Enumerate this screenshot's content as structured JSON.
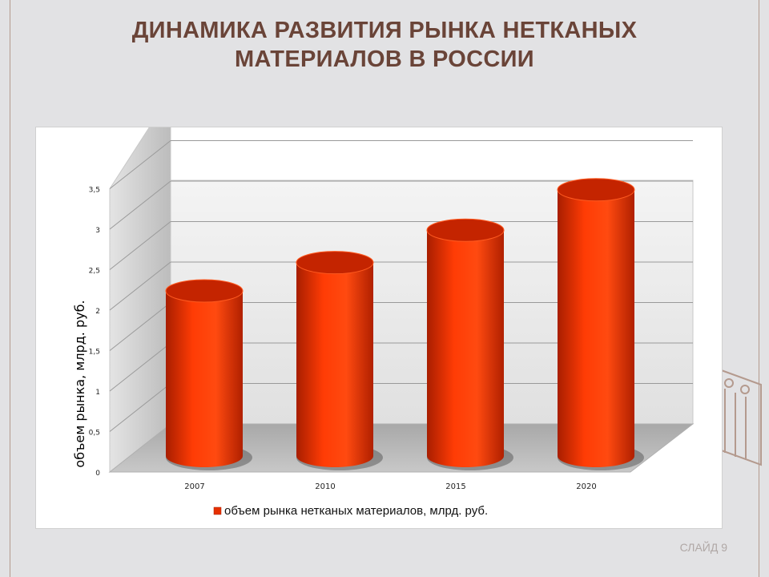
{
  "slide": {
    "title_line1": "ДИНАМИКА РАЗВИТИЯ РЫНКА НЕТКАНЫХ",
    "title_line2": "МАТЕРИАЛОВ В РОССИИ",
    "slide_number": "СЛАЙД 9"
  },
  "colors": {
    "accent": "#e63000",
    "title": "#6a4438"
  },
  "chart_data": {
    "type": "bar",
    "style": "3d-cylinder",
    "categories": [
      "2007",
      "2010",
      "2015",
      "2020"
    ],
    "series": [
      {
        "name": "объем рынка нетканых материалов, млрд. руб.",
        "values": [
          2.0,
          2.35,
          2.75,
          3.25
        ]
      }
    ],
    "ylabel": "объем рынка, млрд. руб.",
    "ylim": [
      0,
      4
    ],
    "yticks": [
      "0",
      "0,5",
      "1",
      "1,5",
      "2",
      "2,5",
      "3",
      "3,5"
    ],
    "grid": true,
    "legend": "bottom"
  }
}
